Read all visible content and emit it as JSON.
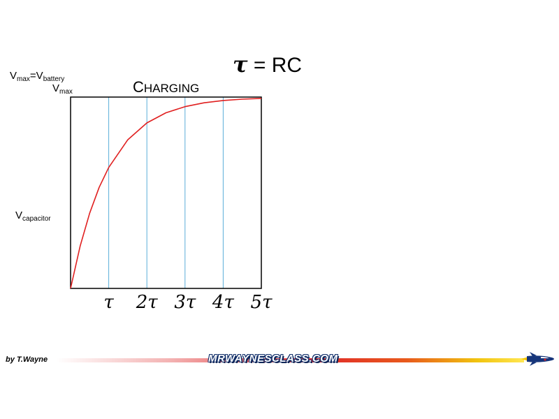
{
  "header": {
    "tau_symbol": "τ",
    "tau_equation_rest": "= RC"
  },
  "labels": {
    "vmax_prefix": "V",
    "vmax_sub": "max",
    "equals": "=V",
    "battery_sub": "battery",
    "vmax2_prefix": "V",
    "vmax2_sub": "max",
    "vcap_prefix": "V",
    "vcap_sub": "capacitor"
  },
  "chart_data": {
    "type": "line",
    "title_first": "C",
    "title_rest": "HARGING",
    "x_tick_labels": [
      "τ",
      "2τ",
      "3τ",
      "4τ",
      "5τ"
    ],
    "xlim": [
      0,
      5
    ],
    "ylim": [
      0,
      1
    ],
    "grid": "vertical",
    "series": [
      {
        "x": [
          0,
          0.25,
          0.5,
          0.75,
          1,
          1.5,
          2,
          2.5,
          3,
          3.5,
          4,
          4.5,
          5
        ],
        "y": [
          0,
          0.221,
          0.393,
          0.528,
          0.632,
          0.777,
          0.865,
          0.918,
          0.95,
          0.97,
          0.982,
          0.989,
          0.993
        ]
      }
    ],
    "colors": {
      "line": "#e02020",
      "grid": "#5aaed8",
      "frame": "#000000"
    }
  },
  "footer": {
    "by": "by T.Wayne",
    "site": "MRWAYNESCLASS.COM"
  },
  "icons": {
    "rocket": "rocket-icon"
  }
}
